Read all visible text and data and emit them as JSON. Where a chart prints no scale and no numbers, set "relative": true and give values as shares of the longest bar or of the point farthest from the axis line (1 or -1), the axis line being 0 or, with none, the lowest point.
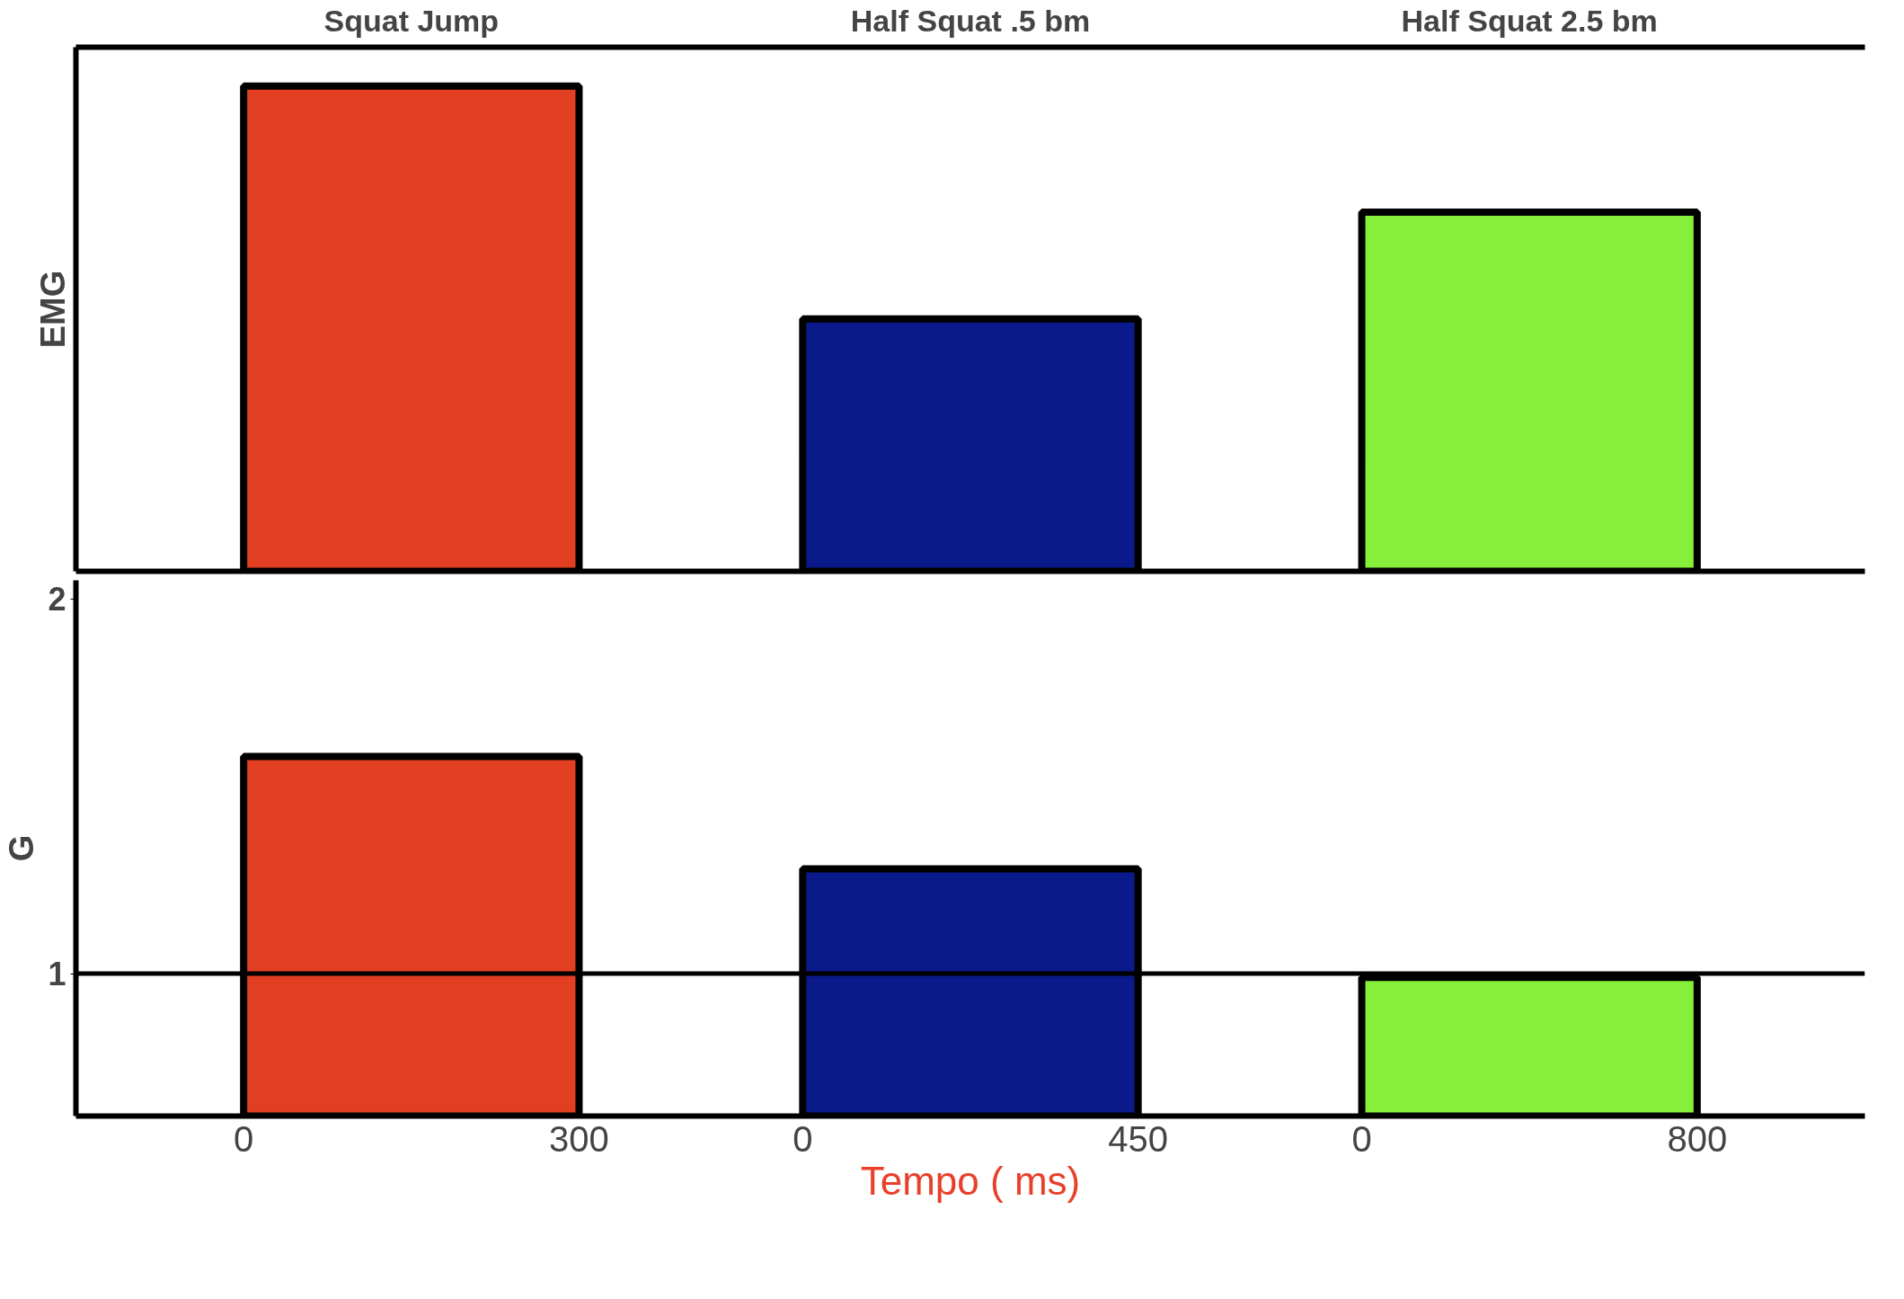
{
  "chart_data": [
    {
      "type": "bar",
      "ylabel": "EMG",
      "categories": [
        "Squat Jump",
        "Half Squat .5 bm",
        "Half Squat 2.5 bm"
      ],
      "relative": true,
      "values": [
        1,
        0.52,
        0.74
      ],
      "colors": [
        "#e23f22",
        "#0a1a8a",
        "#86ef3a"
      ],
      "grid": false
    },
    {
      "type": "bar",
      "ylabel": "G",
      "xlabel": "Tempo ( ms)",
      "categories": [
        null,
        null,
        null
      ],
      "values": [
        1.58,
        1.28,
        0.99
      ],
      "colors": [
        "#e23f22",
        "#0a1a8a",
        "#86ef3a"
      ],
      "ylim": [
        0.62,
        2.05
      ],
      "yticks": [
        1,
        2
      ],
      "ref_lines": [
        {
          "axis": "y",
          "value": 1,
          "label": null,
          "color": "#000000"
        }
      ],
      "annotations": [
        "0",
        "300",
        "0",
        "450",
        "0",
        "800"
      ],
      "grid": false
    }
  ]
}
